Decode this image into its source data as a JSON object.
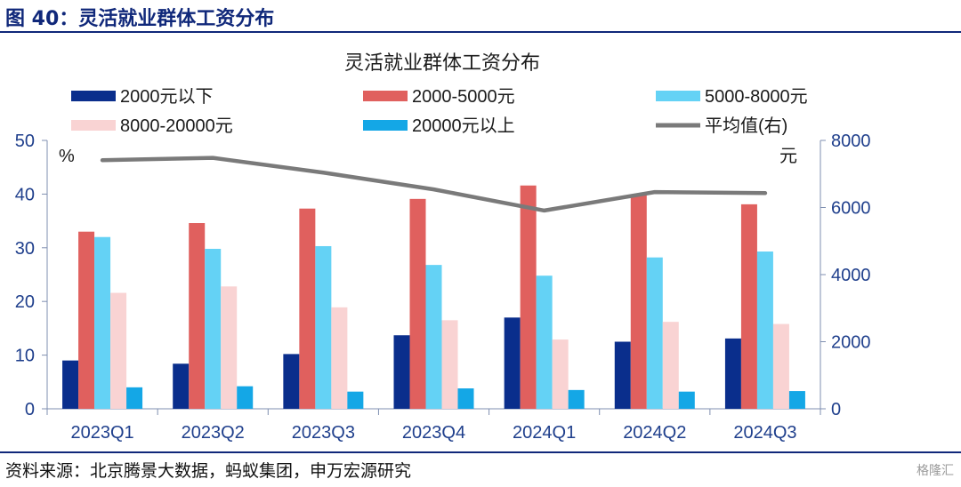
{
  "figure": {
    "label": "图 40：灵活就业群体工资分布",
    "source": "资料来源：北京腾景大数据，蚂蚁集团，申万宏源研究",
    "watermark": "格隆汇"
  },
  "colors": {
    "rule": "#10287a",
    "axis_text": "#1f3f8c"
  },
  "chart_data": {
    "type": "bar",
    "title": "灵活就业群体工资分布",
    "categories": [
      "2023Q1",
      "2023Q2",
      "2023Q3",
      "2023Q4",
      "2024Q1",
      "2024Q2",
      "2024Q3"
    ],
    "series": [
      {
        "name": "2000元以下",
        "color": "#0a2e8c",
        "values": [
          9.0,
          8.4,
          10.2,
          13.7,
          17.0,
          12.5,
          13.1
        ]
      },
      {
        "name": "2000-5000元",
        "color": "#e0605e",
        "values": [
          33.0,
          34.6,
          37.3,
          39.1,
          41.6,
          39.9,
          38.1
        ]
      },
      {
        "name": "5000-8000元",
        "color": "#64d2f5",
        "values": [
          32.0,
          29.8,
          30.3,
          26.8,
          24.8,
          28.2,
          29.3
        ]
      },
      {
        "name": "8000-20000元",
        "color": "#f9d3d3",
        "values": [
          21.6,
          22.8,
          18.9,
          16.5,
          12.9,
          16.2,
          15.8
        ]
      },
      {
        "name": "20000元以上",
        "color": "#14a7e6",
        "values": [
          4.0,
          4.2,
          3.2,
          3.8,
          3.5,
          3.2,
          3.3
        ]
      }
    ],
    "line": {
      "name": "平均值(右)",
      "color": "#7a7a7a",
      "values": [
        7410,
        7480,
        7040,
        6540,
        5910,
        6460,
        6430
      ]
    },
    "y_left": {
      "unit": "%",
      "ylim": [
        0,
        50
      ],
      "ticks": [
        0,
        10,
        20,
        30,
        40,
        50
      ]
    },
    "y_right": {
      "unit": "元",
      "ylim": [
        0,
        8000
      ],
      "ticks": [
        0,
        2000,
        4000,
        6000,
        8000
      ]
    },
    "grid": false,
    "legend_position": "top"
  }
}
